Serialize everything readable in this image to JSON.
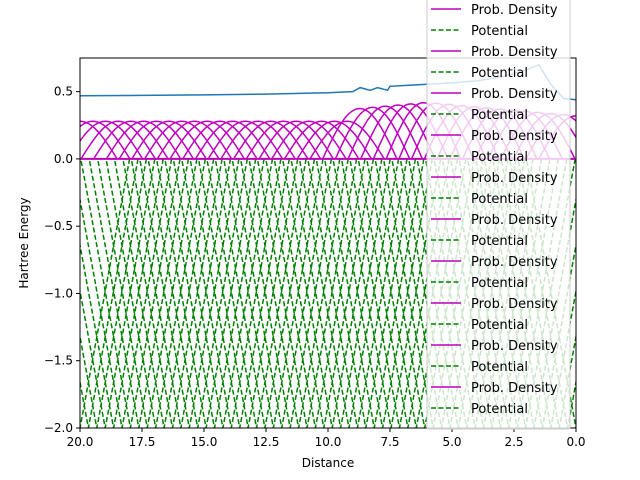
{
  "chart_data": {
    "type": "line",
    "title": "",
    "xlabel": "Distance",
    "ylabel": "Hartree Energy",
    "xlim": [
      20.0,
      0.0
    ],
    "ylim": [
      -2.0,
      0.75
    ],
    "x_inverted": true,
    "grid": false,
    "legend_placement": "top-right",
    "xticks": [
      "20.0",
      "17.5",
      "15.0",
      "12.5",
      "10.0",
      "7.5",
      "5.0",
      "2.5",
      "0.0"
    ],
    "xtick_values": [
      20.0,
      17.5,
      15.0,
      12.5,
      10.0,
      7.5,
      5.0,
      2.5,
      0.0
    ],
    "yticks": [
      "0.5",
      "0.0",
      "−0.5",
      "−1.0",
      "−1.5",
      "−2.0"
    ],
    "ytick_values": [
      0.5,
      0.0,
      -0.5,
      -1.0,
      -1.5,
      -2.0
    ],
    "colors": {
      "energy": "#1f77b4",
      "density": "#bf00bf",
      "potential": "#008000"
    },
    "legend": [
      {
        "label": "Prob. Density",
        "style": "solid",
        "color": "#bf00bf"
      },
      {
        "label": "Potential",
        "style": "dashed",
        "color": "#008000"
      },
      {
        "label": "Prob. Density",
        "style": "solid",
        "color": "#bf00bf"
      },
      {
        "label": "Potential",
        "style": "dashed",
        "color": "#008000"
      },
      {
        "label": "Prob. Density",
        "style": "solid",
        "color": "#bf00bf"
      },
      {
        "label": "Potential",
        "style": "dashed",
        "color": "#008000"
      },
      {
        "label": "Prob. Density",
        "style": "solid",
        "color": "#bf00bf"
      },
      {
        "label": "Potential",
        "style": "dashed",
        "color": "#008000"
      },
      {
        "label": "Prob. Density",
        "style": "solid",
        "color": "#bf00bf"
      },
      {
        "label": "Potential",
        "style": "dashed",
        "color": "#008000"
      },
      {
        "label": "Prob. Density",
        "style": "solid",
        "color": "#bf00bf"
      },
      {
        "label": "Potential",
        "style": "dashed",
        "color": "#008000"
      },
      {
        "label": "Prob. Density",
        "style": "solid",
        "color": "#bf00bf"
      },
      {
        "label": "Potential",
        "style": "dashed",
        "color": "#008000"
      },
      {
        "label": "Prob. Density",
        "style": "solid",
        "color": "#bf00bf"
      },
      {
        "label": "Potential",
        "style": "dashed",
        "color": "#008000"
      },
      {
        "label": "Prob. Density",
        "style": "solid",
        "color": "#bf00bf"
      },
      {
        "label": "Potential",
        "style": "dashed",
        "color": "#008000"
      },
      {
        "label": "Prob. Density",
        "style": "solid",
        "color": "#bf00bf"
      },
      {
        "label": "Potential",
        "style": "dashed",
        "color": "#008000"
      }
    ],
    "energy_curve": {
      "x": [
        20,
        17.5,
        15,
        12.5,
        10,
        9,
        8.7,
        8.3,
        8.0,
        7.6,
        7.5,
        7.0,
        6.0,
        5.0,
        4.0,
        3.0,
        2.0,
        1.5,
        1.0,
        0.5,
        0.0
      ],
      "y": [
        0.47,
        0.472,
        0.476,
        0.482,
        0.492,
        0.5,
        0.53,
        0.51,
        0.53,
        0.51,
        0.54,
        0.545,
        0.555,
        0.565,
        0.58,
        0.61,
        0.66,
        0.7,
        0.55,
        0.45,
        0.44
      ]
    },
    "density_series": {
      "count": 40,
      "x_start": 20,
      "x_end": 0,
      "center_min": 0,
      "center_max": 20,
      "width": 1.5,
      "baseline_height": 0.28,
      "near_origin_height": 0.42,
      "near_origin_range": 9
    },
    "potential_series": {
      "count": 60,
      "depth": -2.0,
      "well_width": 2.0,
      "center_min": 0,
      "center_max": 20
    }
  }
}
